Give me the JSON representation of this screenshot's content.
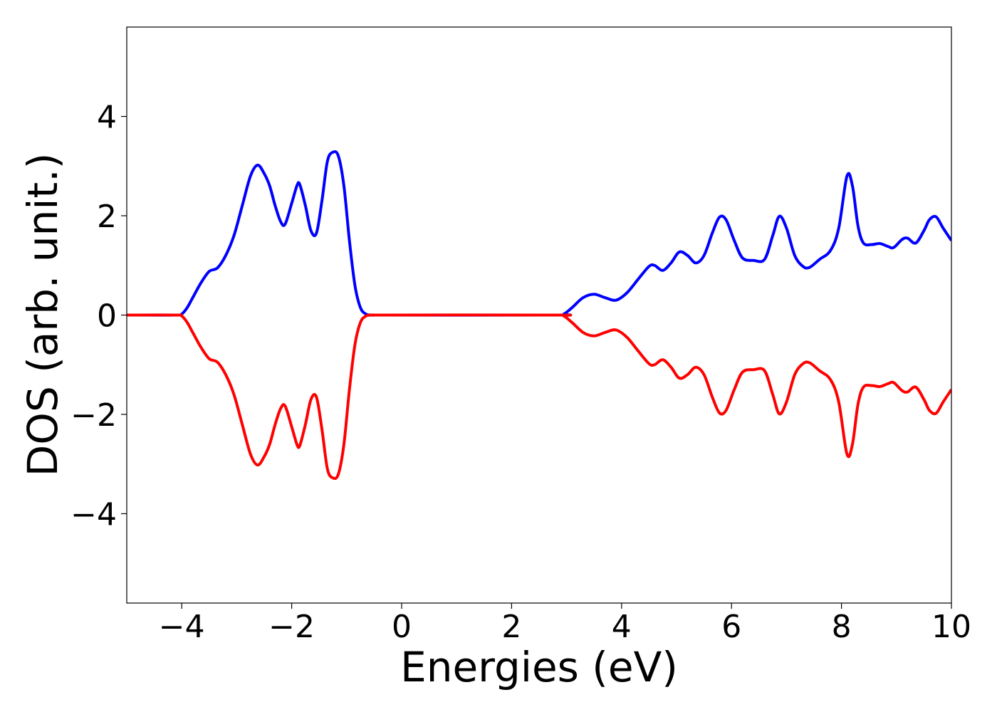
{
  "chart_data": {
    "type": "line",
    "title": "",
    "xlabel": "Energies (eV)",
    "ylabel": "DOS (arb. unit.)",
    "xlim": [
      -5,
      10
    ],
    "ylim": [
      -5.8,
      5.8
    ],
    "xticks": [
      -4,
      -2,
      0,
      2,
      4,
      6,
      8,
      10
    ],
    "xtick_labels": [
      "−4",
      "−2",
      "0",
      "2",
      "4",
      "6",
      "8",
      "10"
    ],
    "yticks": [
      -4,
      -2,
      0,
      2,
      4
    ],
    "ytick_labels": [
      "−4",
      "−2",
      "0",
      "2",
      "4"
    ],
    "grid": false,
    "legend": "none",
    "series": [
      {
        "color": "#0000ff",
        "x": [
          -5,
          -4.1,
          -4.0,
          -3.9,
          -3.8,
          -3.65,
          -3.5,
          -3.35,
          -3.2,
          -3.05,
          -2.9,
          -2.75,
          -2.62,
          -2.5,
          -2.4,
          -2.3,
          -2.2,
          -2.12,
          -2.0,
          -1.9,
          -1.85,
          -1.75,
          -1.65,
          -1.55,
          -1.45,
          -1.35,
          -1.25,
          -1.15,
          -1.05,
          -0.95,
          -0.85,
          -0.75,
          -0.65,
          -0.55,
          -0.45,
          -0.3,
          2.8,
          2.95,
          3.1,
          3.3,
          3.5,
          3.7,
          3.9,
          4.1,
          4.3,
          4.5,
          4.6,
          4.75,
          4.9,
          5.05,
          5.2,
          5.35,
          5.5,
          5.65,
          5.78,
          5.9,
          6.05,
          6.2,
          6.4,
          6.6,
          6.75,
          6.87,
          7.0,
          7.15,
          7.3,
          7.42,
          7.6,
          7.8,
          7.95,
          8.1,
          8.2,
          8.3,
          8.4,
          8.55,
          8.7,
          8.85,
          8.95,
          9.1,
          9.2,
          9.35,
          9.5,
          9.6,
          9.72,
          9.85,
          10.0
        ],
        "y": [
          0.0,
          0.0,
          0.02,
          0.15,
          0.35,
          0.65,
          0.88,
          0.95,
          1.2,
          1.6,
          2.2,
          2.8,
          3.02,
          2.85,
          2.6,
          2.2,
          1.88,
          1.83,
          2.25,
          2.62,
          2.62,
          2.2,
          1.7,
          1.65,
          2.3,
          3.1,
          3.28,
          3.2,
          2.6,
          1.5,
          0.6,
          0.15,
          0.02,
          0.0,
          0.0,
          0.0,
          0.0,
          0.02,
          0.15,
          0.35,
          0.42,
          0.35,
          0.3,
          0.45,
          0.72,
          0.98,
          1.0,
          0.9,
          1.05,
          1.27,
          1.2,
          1.05,
          1.2,
          1.65,
          1.97,
          1.92,
          1.5,
          1.15,
          1.1,
          1.12,
          1.6,
          1.99,
          1.75,
          1.2,
          0.98,
          0.96,
          1.12,
          1.3,
          1.75,
          2.8,
          2.6,
          1.8,
          1.45,
          1.42,
          1.44,
          1.38,
          1.36,
          1.52,
          1.55,
          1.45,
          1.7,
          1.92,
          1.98,
          1.75,
          1.5
        ]
      },
      {
        "color": "#ff0000",
        "x": [
          -5,
          -4.1,
          -4.0,
          -3.9,
          -3.8,
          -3.65,
          -3.5,
          -3.35,
          -3.2,
          -3.05,
          -2.9,
          -2.75,
          -2.62,
          -2.5,
          -2.4,
          -2.3,
          -2.2,
          -2.12,
          -2.0,
          -1.9,
          -1.85,
          -1.75,
          -1.65,
          -1.55,
          -1.45,
          -1.35,
          -1.25,
          -1.15,
          -1.05,
          -0.95,
          -0.85,
          -0.75,
          -0.65,
          -0.55,
          -0.45,
          -0.3,
          2.8,
          2.95,
          3.1,
          3.3,
          3.5,
          3.7,
          3.9,
          4.1,
          4.3,
          4.5,
          4.6,
          4.75,
          4.9,
          5.05,
          5.2,
          5.35,
          5.5,
          5.65,
          5.78,
          5.9,
          6.05,
          6.2,
          6.4,
          6.6,
          6.75,
          6.87,
          7.0,
          7.15,
          7.3,
          7.42,
          7.6,
          7.8,
          7.95,
          8.1,
          8.2,
          8.3,
          8.4,
          8.55,
          8.7,
          8.85,
          8.95,
          9.1,
          9.2,
          9.35,
          9.5,
          9.6,
          9.72,
          9.85,
          10.0
        ],
        "y": [
          0.0,
          0.0,
          -0.02,
          -0.15,
          -0.35,
          -0.65,
          -0.88,
          -0.95,
          -1.2,
          -1.6,
          -2.2,
          -2.8,
          -3.02,
          -2.85,
          -2.6,
          -2.2,
          -1.88,
          -1.83,
          -2.25,
          -2.62,
          -2.62,
          -2.2,
          -1.7,
          -1.65,
          -2.3,
          -3.1,
          -3.28,
          -3.2,
          -2.6,
          -1.5,
          -0.6,
          -0.15,
          -0.02,
          0.0,
          0.0,
          0.0,
          0.0,
          -0.02,
          -0.15,
          -0.35,
          -0.42,
          -0.35,
          -0.3,
          -0.45,
          -0.72,
          -0.98,
          -1.0,
          -0.9,
          -1.05,
          -1.27,
          -1.2,
          -1.05,
          -1.2,
          -1.65,
          -1.97,
          -1.92,
          -1.5,
          -1.15,
          -1.1,
          -1.12,
          -1.6,
          -1.99,
          -1.75,
          -1.2,
          -0.98,
          -0.96,
          -1.12,
          -1.3,
          -1.75,
          -2.8,
          -2.6,
          -1.8,
          -1.45,
          -1.42,
          -1.44,
          -1.38,
          -1.36,
          -1.52,
          -1.55,
          -1.45,
          -1.7,
          -1.92,
          -1.98,
          -1.75,
          -1.5
        ]
      }
    ]
  }
}
